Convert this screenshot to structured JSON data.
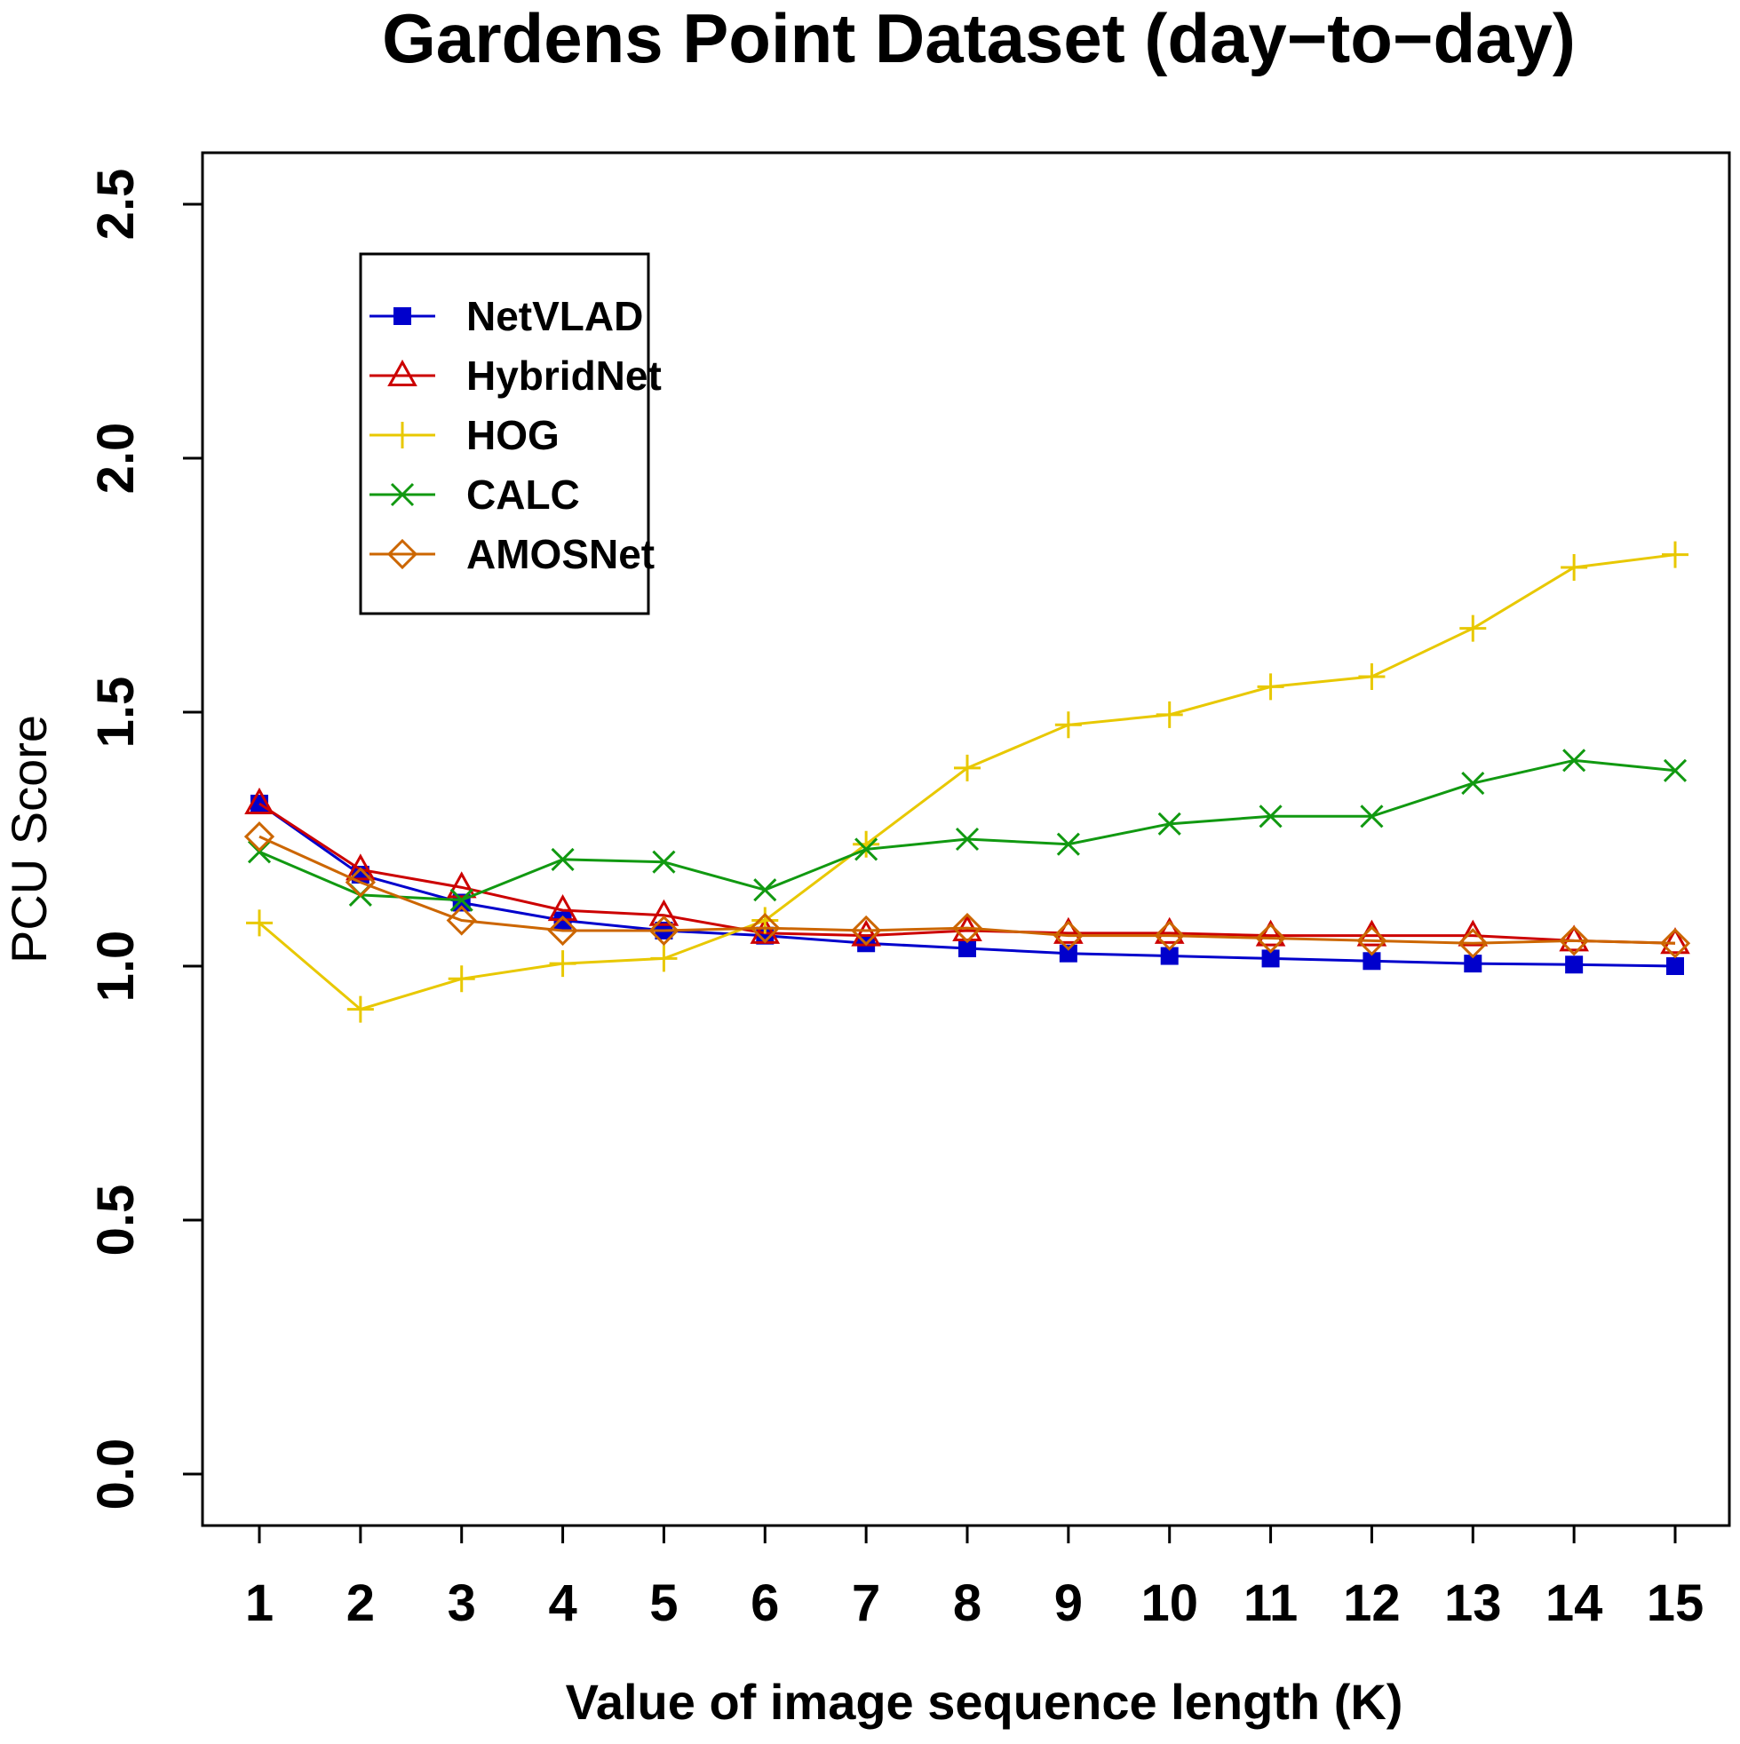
{
  "chart_data": {
    "type": "line",
    "title": "Gardens Point Dataset (day−to−day)",
    "xlabel": "Value of image sequence length (K)",
    "ylabel": "PCU Score",
    "x": [
      1,
      2,
      3,
      4,
      5,
      6,
      7,
      8,
      9,
      10,
      11,
      12,
      13,
      14,
      15
    ],
    "xticks": [
      "1",
      "2",
      "3",
      "4",
      "5",
      "6",
      "7",
      "8",
      "9",
      "10",
      "11",
      "12",
      "13",
      "14",
      "15"
    ],
    "yticks": [
      "0.0",
      "0.5",
      "1.0",
      "1.5",
      "2.0",
      "2.5"
    ],
    "ylim": [
      -0.1,
      2.7
    ],
    "grid": false,
    "legend_position": "top-left",
    "series": [
      {
        "name": "NetVLAD",
        "color": "#0000cc",
        "marker": "filled-square",
        "values": [
          1.32,
          1.18,
          1.125,
          1.09,
          1.07,
          1.06,
          1.045,
          1.035,
          1.025,
          1.02,
          1.015,
          1.01,
          1.005,
          1.003,
          1.0
        ]
      },
      {
        "name": "HybridNet",
        "color": "#cc0000",
        "marker": "triangle",
        "values": [
          1.32,
          1.19,
          1.155,
          1.11,
          1.1,
          1.065,
          1.06,
          1.07,
          1.065,
          1.065,
          1.06,
          1.06,
          1.06,
          1.05,
          1.045
        ]
      },
      {
        "name": "HOG",
        "color": "#e8c800",
        "marker": "plus",
        "values": [
          1.085,
          0.915,
          0.975,
          1.005,
          1.015,
          1.09,
          1.24,
          1.39,
          1.475,
          1.495,
          1.55,
          1.57,
          1.665,
          1.785,
          1.81
        ]
      },
      {
        "name": "CALC",
        "color": "#119911",
        "marker": "x",
        "values": [
          1.225,
          1.14,
          1.13,
          1.21,
          1.205,
          1.15,
          1.23,
          1.25,
          1.24,
          1.28,
          1.295,
          1.295,
          1.36,
          1.405,
          1.385
        ]
      },
      {
        "name": "AMOSNet",
        "color": "#cc6600",
        "marker": "diamond",
        "values": [
          1.255,
          1.165,
          1.09,
          1.07,
          1.07,
          1.075,
          1.07,
          1.075,
          1.06,
          1.06,
          1.055,
          1.05,
          1.045,
          1.05,
          1.045
        ]
      }
    ]
  }
}
